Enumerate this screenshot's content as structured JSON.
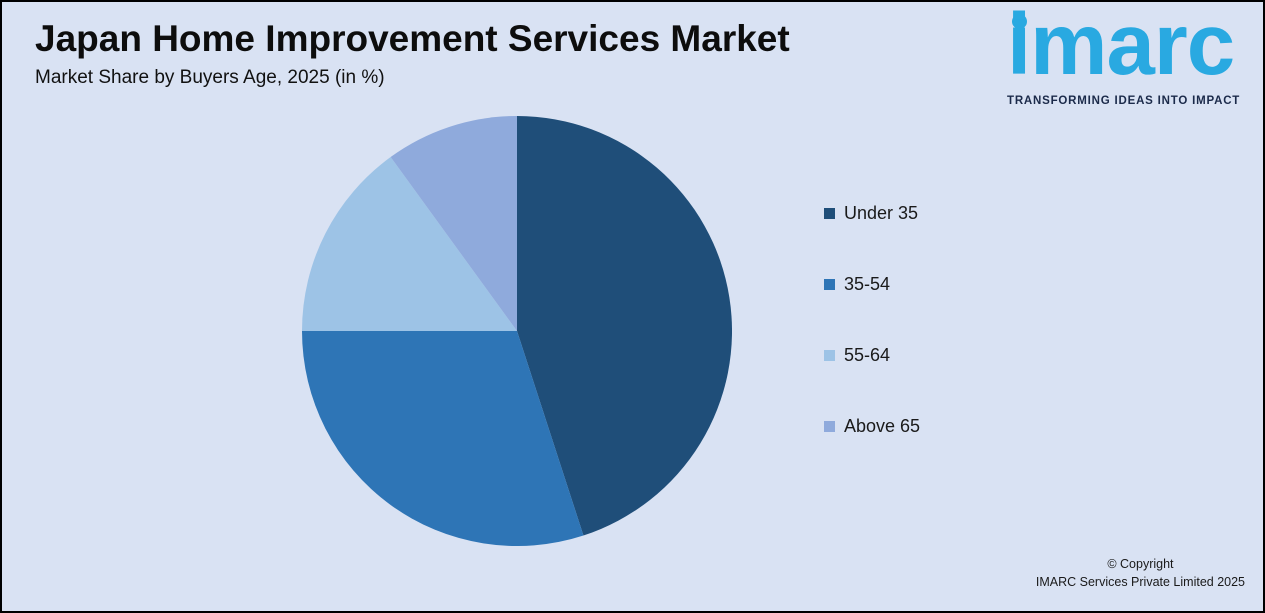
{
  "page": {
    "background": "#D9E2F3",
    "border_color": "#000000"
  },
  "header": {
    "title": "Japan Home Improvement Services Market",
    "subtitle": "Market Share by Buyers Age, 2025 (in %)"
  },
  "logo": {
    "wordmark": "imarc",
    "tagline": "TRANSFORMING IDEAS INTO IMPACT",
    "brand_color": "#29A9E1",
    "tagline_color": "#1B2A4A"
  },
  "chart_data": {
    "type": "pie",
    "title": "Japan Home Improvement Services Market",
    "subtitle": "Market Share by Buyers Age, 2025 (in %)",
    "unit": "%",
    "start_angle_deg": 0,
    "direction": "clockwise",
    "legend_position": "right",
    "slices": [
      {
        "label": "Under 35",
        "value": 45,
        "color": "#1F4E79"
      },
      {
        "label": "35-54",
        "value": 30,
        "color": "#2E75B6"
      },
      {
        "label": "55-64",
        "value": 15,
        "color": "#9DC3E6"
      },
      {
        "label": "Above 65",
        "value": 10,
        "color": "#8FAADC"
      }
    ]
  },
  "footer": {
    "copyright_line1": "© Copyright",
    "copyright_line2": "IMARC Services Private Limited 2025"
  }
}
